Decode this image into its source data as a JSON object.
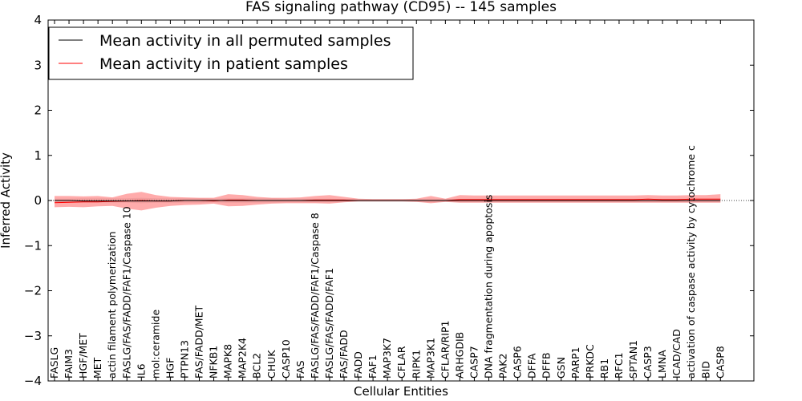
{
  "chart_data": {
    "type": "line",
    "title": "FAS signaling pathway (CD95) -- 145 samples",
    "xlabel": "Cellular Entities",
    "ylabel": "Inferred Activity",
    "ylim": [
      -4,
      4
    ],
    "yticks": [
      -4,
      -3,
      -2,
      -1,
      0,
      1,
      2,
      3,
      4
    ],
    "ytick_labels": [
      "−4",
      "−3",
      "−2",
      "−1",
      "0",
      "1",
      "2",
      "3",
      "4"
    ],
    "legend": {
      "location": "top-left",
      "entries": [
        {
          "label": "Mean activity in all permuted samples",
          "color": "#000000"
        },
        {
          "label": "Mean activity in patient samples",
          "color": "#ff0000"
        }
      ]
    },
    "categories": [
      "FASLG",
      "FAIM3",
      "HGF/MET",
      "MET",
      "actin filament polymerization",
      "FASLG/FAS/FADD/FAF1/Caspase 10",
      "IL6",
      "mol:ceramide",
      "HGF",
      "PTPN13",
      "FAS/FADD/MET",
      "NFKB1",
      "MAPK8",
      "MAP2K4",
      "BCL2",
      "CHUK",
      "CASP10",
      "FAS",
      "FASLG/FAS/FADD/FAF1/Caspase 8",
      "FASLG/FAS/FADD/FAF1",
      "FAS/FADD",
      "FADD",
      "FAF1",
      "MAP3K7",
      "CFLAR",
      "RIPK1",
      "MAP3K1",
      "CFLAR/RIP1",
      "ARHGDIB",
      "CASP7",
      "DNA fragmentation during apoptosis",
      "PAK2",
      "CASP6",
      "DFFA",
      "DFFB",
      "GSN",
      "PARP1",
      "PRKDC",
      "RB1",
      "RFC1",
      "SPTAN1",
      "CASP3",
      "LMNA",
      "ICAD/CAD",
      "activation of caspase activity by cytochrome c",
      "BID",
      "CASP8"
    ],
    "series": [
      {
        "name": "Mean activity in all permuted samples",
        "color": "#000000",
        "values": [
          0,
          0,
          -0.01,
          -0.01,
          -0.01,
          -0.01,
          -0.01,
          -0.01,
          -0.01,
          0,
          0,
          0,
          0,
          0,
          0,
          0,
          0,
          0,
          0,
          0,
          0,
          0,
          0,
          0,
          0,
          0,
          0,
          0,
          0,
          0,
          0,
          0,
          0,
          0,
          0,
          0,
          0,
          0,
          0,
          0,
          0,
          0,
          0,
          0,
          0,
          0,
          0
        ],
        "band_low": [
          -0.04,
          -0.04,
          -0.05,
          -0.05,
          -0.05,
          -0.05,
          -0.06,
          -0.05,
          -0.05,
          -0.05,
          -0.05,
          -0.04,
          -0.05,
          -0.05,
          -0.05,
          -0.05,
          -0.04,
          -0.04,
          -0.04,
          -0.04,
          -0.03,
          -0.03,
          -0.03,
          -0.03,
          -0.03,
          -0.03,
          -0.04,
          -0.03,
          -0.04,
          -0.04,
          -0.04,
          -0.04,
          -0.04,
          -0.04,
          -0.04,
          -0.04,
          -0.04,
          -0.04,
          -0.04,
          -0.04,
          -0.04,
          -0.04,
          -0.04,
          -0.04,
          -0.04,
          -0.04,
          -0.04
        ],
        "band_high": [
          0.04,
          0.04,
          0.05,
          0.05,
          0.05,
          0.05,
          0.06,
          0.05,
          0.05,
          0.05,
          0.05,
          0.04,
          0.05,
          0.05,
          0.05,
          0.05,
          0.04,
          0.04,
          0.04,
          0.04,
          0.03,
          0.03,
          0.03,
          0.03,
          0.03,
          0.03,
          0.04,
          0.03,
          0.04,
          0.04,
          0.04,
          0.04,
          0.04,
          0.04,
          0.04,
          0.04,
          0.04,
          0.04,
          0.04,
          0.04,
          0.04,
          0.04,
          0.04,
          0.04,
          0.04,
          0.04,
          0.04
        ]
      },
      {
        "name": "Mean activity in patient samples",
        "color": "#ff0000",
        "values": [
          -0.05,
          -0.04,
          -0.03,
          -0.03,
          -0.02,
          -0.01,
          0,
          -0.01,
          -0.01,
          0,
          0,
          -0.01,
          0.01,
          0.01,
          0,
          0,
          0,
          0,
          0.01,
          0.01,
          0.01,
          0,
          0,
          0,
          0,
          0,
          0,
          0,
          0.02,
          0.02,
          0.02,
          0.02,
          0.02,
          0.02,
          0.02,
          0.02,
          0.02,
          0.02,
          0.02,
          0.02,
          0.02,
          0.03,
          0.02,
          0.02,
          0.03,
          0.03,
          0.03
        ],
        "band_low": [
          -0.15,
          -0.14,
          -0.15,
          -0.13,
          -0.12,
          -0.18,
          -0.22,
          -0.16,
          -0.12,
          -0.1,
          -0.09,
          -0.07,
          -0.13,
          -0.12,
          -0.09,
          -0.07,
          -0.06,
          -0.06,
          -0.06,
          -0.07,
          -0.04,
          -0.02,
          -0.02,
          -0.02,
          -0.02,
          -0.03,
          -0.06,
          -0.03,
          -0.05,
          -0.05,
          -0.05,
          -0.05,
          -0.05,
          -0.05,
          -0.05,
          -0.05,
          -0.05,
          -0.05,
          -0.05,
          -0.05,
          -0.05,
          -0.05,
          -0.05,
          -0.05,
          -0.05,
          -0.05,
          -0.05
        ],
        "band_high": [
          0.1,
          0.1,
          0.09,
          0.1,
          0.07,
          0.15,
          0.19,
          0.12,
          0.08,
          0.07,
          0.06,
          0.06,
          0.14,
          0.12,
          0.08,
          0.06,
          0.06,
          0.07,
          0.1,
          0.12,
          0.08,
          0.04,
          0.03,
          0.03,
          0.03,
          0.04,
          0.1,
          0.04,
          0.12,
          0.11,
          0.11,
          0.11,
          0.11,
          0.11,
          0.11,
          0.11,
          0.11,
          0.11,
          0.11,
          0.11,
          0.11,
          0.12,
          0.11,
          0.11,
          0.12,
          0.12,
          0.14
        ]
      }
    ]
  }
}
